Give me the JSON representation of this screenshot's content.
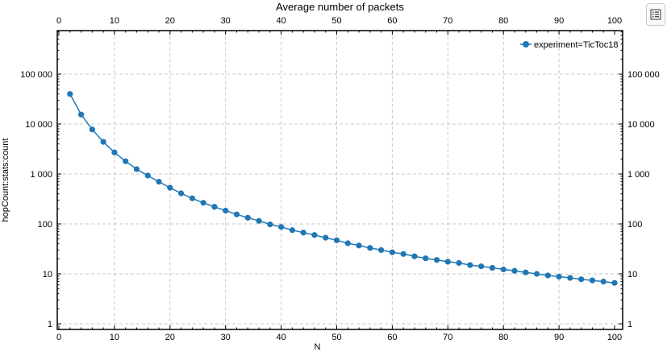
{
  "chart_data": {
    "type": "line",
    "title": "Average number of packets",
    "xlabel": "N",
    "ylabel": "hopCount:stats:count",
    "xlim": [
      0,
      100
    ],
    "ylim": [
      1,
      1000000
    ],
    "yscale": "log",
    "grid": true,
    "legend_position": "top-right",
    "x_ticks": [
      0,
      10,
      20,
      30,
      40,
      50,
      60,
      70,
      80,
      90,
      100
    ],
    "x_tick_labels": [
      "0",
      "10",
      "20",
      "30",
      "40",
      "50",
      "60",
      "70",
      "80",
      "90",
      "100"
    ],
    "y_ticks": [
      1,
      10,
      100,
      1000,
      10000,
      100000
    ],
    "y_tick_labels": [
      "1",
      "10",
      "100",
      "1 000",
      "10 000",
      "100 000"
    ],
    "series": [
      {
        "name": "experiment=TicToc18",
        "color": "#1f77b4",
        "x": [
          2,
          4,
          6,
          8,
          10,
          12,
          14,
          16,
          18,
          20,
          22,
          24,
          26,
          28,
          30,
          32,
          34,
          36,
          38,
          40,
          42,
          44,
          46,
          48,
          50,
          52,
          54,
          56,
          58,
          60,
          62,
          64,
          66,
          68,
          70,
          72,
          74,
          76,
          78,
          80,
          82,
          84,
          86,
          88,
          90,
          92,
          94,
          96,
          98,
          100
        ],
        "y": [
          40000,
          15500,
          7800,
          4400,
          2700,
          1800,
          1250,
          930,
          700,
          530,
          410,
          325,
          265,
          220,
          185,
          155,
          133,
          115,
          98,
          87,
          75,
          67,
          60,
          53,
          47,
          41,
          37,
          33,
          30,
          27,
          25,
          22.5,
          20.5,
          19,
          17.5,
          16.5,
          15,
          14.2,
          13.2,
          12.3,
          11.5,
          10.7,
          10,
          9.3,
          8.8,
          8.3,
          7.8,
          7.4,
          7,
          6.6
        ]
      }
    ]
  },
  "legend_toggle_icon": "legend-list-icon"
}
